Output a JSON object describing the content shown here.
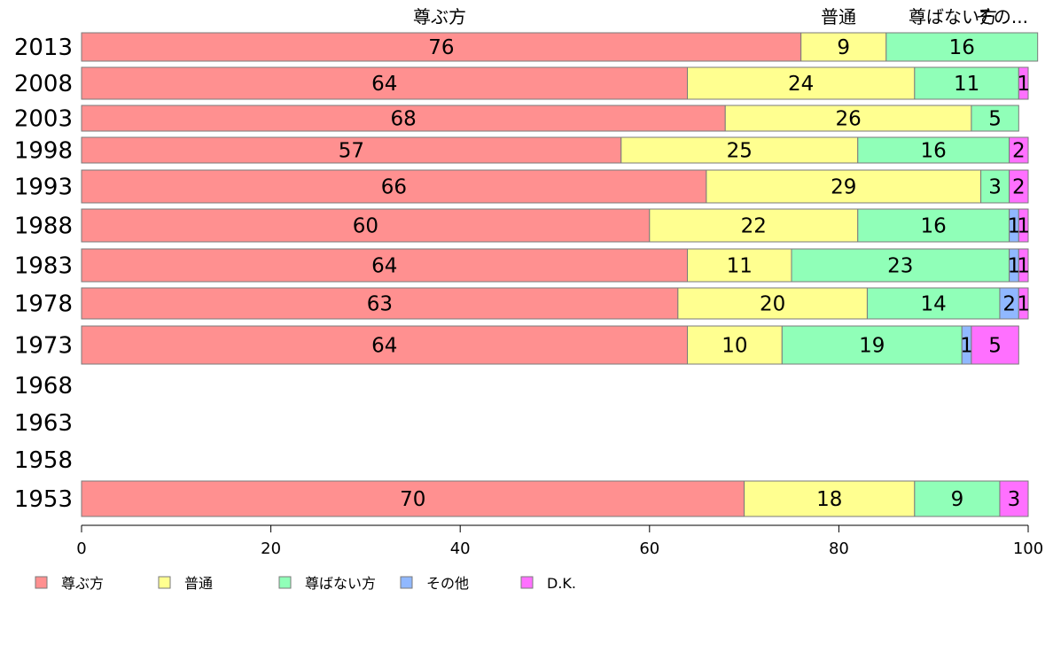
{
  "chart_data": {
    "type": "bar",
    "orientation": "horizontal",
    "stacked": true,
    "header_labels": [
      "尊ぶ方",
      "普通",
      "尊ばない方",
      "その..."
    ],
    "categories": [
      "2013",
      "2008",
      "2003",
      "1998",
      "1993",
      "1988",
      "1983",
      "1978",
      "1973",
      "1968",
      "1963",
      "1958",
      "1953"
    ],
    "series": [
      {
        "name": "尊ぶ方",
        "color": "#ff9090",
        "values": [
          76,
          64,
          68,
          57,
          66,
          60,
          64,
          63,
          64,
          null,
          null,
          null,
          70
        ]
      },
      {
        "name": "普通",
        "color": "#ffff90",
        "values": [
          9,
          24,
          26,
          25,
          29,
          22,
          11,
          20,
          10,
          null,
          null,
          null,
          18
        ]
      },
      {
        "name": "尊ばない方",
        "color": "#90ffb8",
        "values": [
          16,
          11,
          5,
          16,
          3,
          16,
          23,
          14,
          19,
          null,
          null,
          null,
          9
        ]
      },
      {
        "name": "その他",
        "color": "#90b8ff",
        "values": [
          0,
          0,
          0,
          0,
          0,
          1,
          1,
          2,
          1,
          null,
          null,
          null,
          0
        ]
      },
      {
        "name": "D.K.",
        "color": "#ff70ff",
        "values": [
          0,
          1,
          0,
          2,
          2,
          1,
          1,
          1,
          5,
          null,
          null,
          null,
          3
        ]
      }
    ],
    "xlim": [
      0,
      100
    ],
    "xticks": [
      0,
      20,
      40,
      60,
      80,
      100
    ],
    "grid": false,
    "legend_position": "bottom"
  }
}
